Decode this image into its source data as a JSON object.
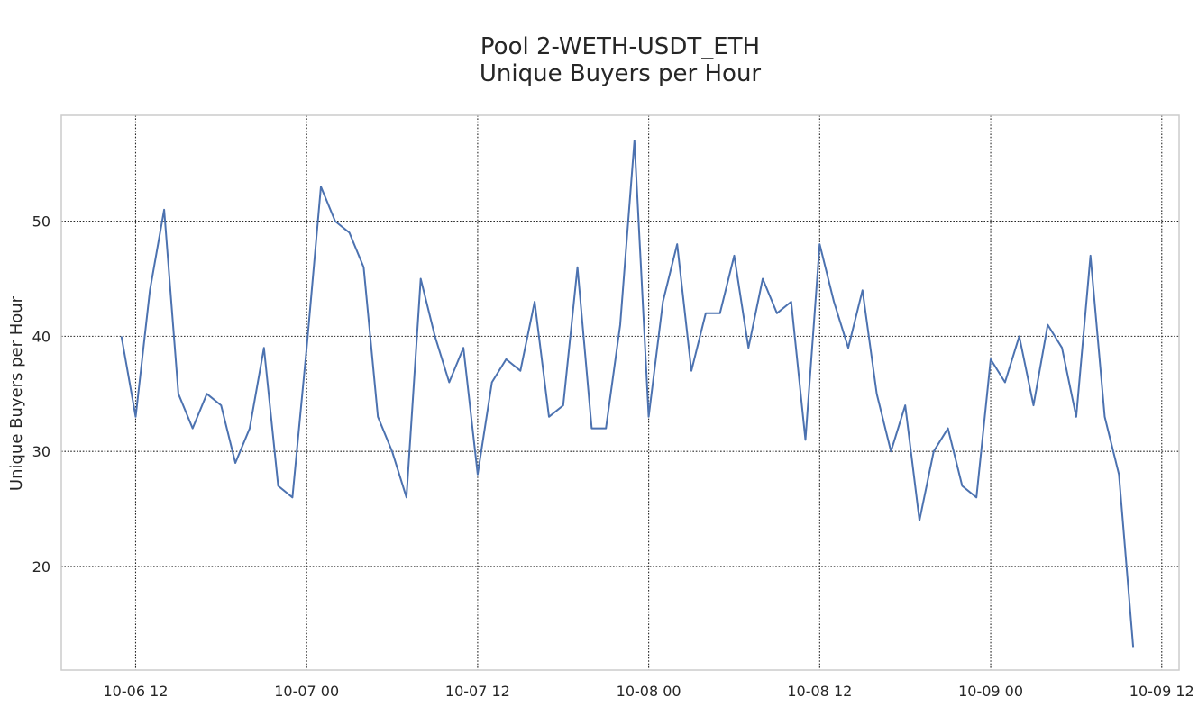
{
  "chart_data": {
    "type": "line",
    "title": "Pool 2-WETH-USDT_ETH",
    "subtitle": "Unique Buyers per Hour",
    "xlabel": "",
    "ylabel": "Unique Buyers per Hour",
    "x_start": "2023-10-06 11:00",
    "x_step_hours": 1,
    "xlim": [
      "2023-10-06 06:47",
      "2023-10-09 13:13"
    ],
    "ylim": [
      11,
      59.2
    ],
    "x_ticks": [
      "10-06 12",
      "10-07 00",
      "10-07 12",
      "10-08 00",
      "10-08 12",
      "10-09 00",
      "10-09 12"
    ],
    "y_ticks": [
      20,
      30,
      40,
      50
    ],
    "grid": true,
    "line_color": "#4c72b0",
    "series": [
      {
        "name": "",
        "values": [
          40,
          33,
          44,
          51,
          35,
          32,
          35,
          34,
          29,
          32,
          39,
          27,
          26,
          39,
          53,
          50,
          49,
          46,
          33,
          30,
          26,
          45,
          40,
          36,
          39,
          28,
          36,
          38,
          37,
          43,
          33,
          34,
          46,
          32,
          32,
          41,
          57,
          33,
          43,
          48,
          37,
          42,
          42,
          47,
          39,
          45,
          42,
          43,
          31,
          48,
          43,
          39,
          44,
          35,
          30,
          34,
          24,
          30,
          32,
          27,
          26,
          38,
          36,
          40,
          34,
          41,
          39,
          33,
          47,
          33,
          28,
          13
        ]
      }
    ]
  }
}
